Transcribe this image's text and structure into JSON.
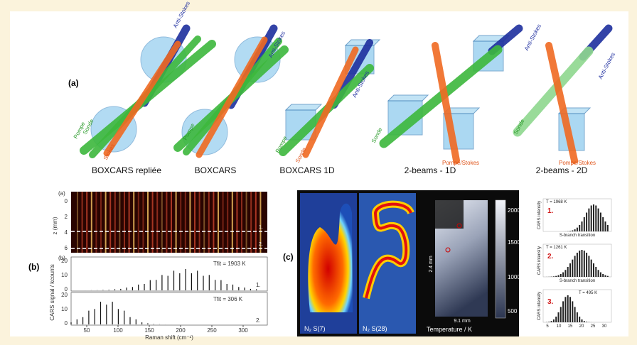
{
  "panel_a": {
    "label": "(a)",
    "captions": [
      "BOXCARS repliée",
      "BOXCARS",
      "BOXCARS 1D",
      "2-beams - 1D",
      "2-beams - 2D"
    ],
    "beam_labels": {
      "anti_stokes": "Anti-Stokes",
      "sonde": "Sonde",
      "pompe": "Pompe",
      "stokes": "Stokes",
      "pompe_stokes": "Pompe/Stokes"
    }
  },
  "panel_b": {
    "label": "(b)",
    "sub_a": "(a)",
    "sub_b": "(b)",
    "z_label": "z (mm)",
    "z_ticks": [
      "0",
      "2",
      "4",
      "6"
    ],
    "marker_1": "1.",
    "marker_2": "2.",
    "fit_1": "Tfit = 1903 K",
    "fit_2": "Tfit = 306 K",
    "y_label": "CARS signal / kcounts",
    "y_ticks": [
      "0",
      "10",
      "20"
    ],
    "x_label": "Raman shift (cm⁻¹)",
    "x_ticks": [
      "50",
      "100",
      "150",
      "200",
      "250",
      "300"
    ]
  },
  "panel_c": {
    "label": "(c)",
    "image_labels": [
      "N₂ S(7)",
      "N₂ S(28)"
    ],
    "temp_label": "Temperature / K",
    "colorbar_ticks": [
      "2000",
      "1500",
      "1000",
      "500"
    ],
    "scale_v": "2.4 mm",
    "scale_h": "9.1 mm",
    "insets": [
      {
        "temperature": "T = 1968 K",
        "marker": "1."
      },
      {
        "temperature": "T = 1261 K",
        "marker": "2."
      },
      {
        "temperature": "T = 495 K",
        "marker": "3."
      }
    ],
    "inset_y_label": "CARS intensity",
    "inset_x_label": "S-branch transition",
    "inset_x_ticks": [
      "5",
      "10",
      "15",
      "20",
      "25",
      "30"
    ]
  }
}
